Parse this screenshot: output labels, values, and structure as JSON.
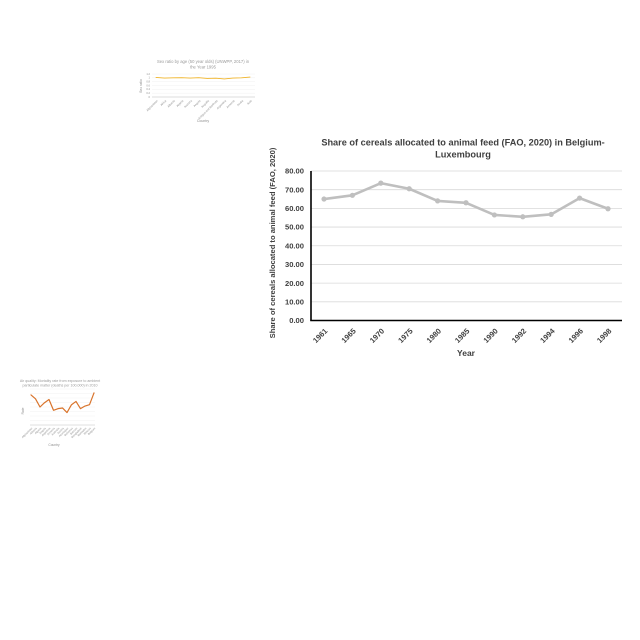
{
  "chart_data": [
    {
      "type": "line",
      "title_lines": [
        "Sex ratio by age (50 year olds) (UNWPP, 2017) in",
        "the Year 1995"
      ],
      "ylabel": "Sex ratio",
      "xlabel": "Country",
      "categories": [
        "Afghanistan",
        "Africa",
        "Albania",
        "Algeria",
        "Andorra",
        "Angola",
        "Anguilla",
        "Antigua and Barbuda",
        "Argentina",
        "Armenia",
        "Aruba",
        "Asia"
      ],
      "series": [
        {
          "values": [
            1.02,
            0.99,
            1.0,
            1.01,
            0.99,
            1.01,
            0.97,
            0.98,
            0.94,
            0.99,
            1.0,
            1.04
          ]
        }
      ],
      "ylim": [
        0,
        1.2
      ],
      "color": "#f0b429"
    },
    {
      "type": "line",
      "title_lines": [
        "Share of cereals allocated to animal feed (FAO, 2020)  in Belgium-",
        "Luxembourg"
      ],
      "xlabel": "Year",
      "ylabel": "Share of cereals allocated to animal feed (FAO, 2020)",
      "categories": [
        "1961",
        "1965",
        "1970",
        "1975",
        "1980",
        "1985",
        "1990",
        "1992",
        "1994",
        "1996",
        "1998"
      ],
      "series": [
        {
          "values": [
            65.0,
            67.0,
            73.5,
            70.5,
            64.0,
            63.0,
            56.5,
            55.5,
            56.8,
            65.5,
            59.8
          ]
        }
      ],
      "yticks": [
        "0.00",
        "10.00",
        "20.00",
        "30.00",
        "40.00",
        "50.00",
        "60.00",
        "70.00",
        "80.00"
      ],
      "ylim": [
        0,
        80
      ],
      "color": "#bfbfbf"
    },
    {
      "type": "line",
      "title_lines": [
        "Air quality: Mortality rate from exposure to ambient",
        "particulate matter (deaths per 100,000) in 2010"
      ],
      "ylabel": "Rate",
      "xlabel": "Country",
      "categories": [
        "Afghanistan",
        "Albania",
        "Algeria",
        "Angola",
        "Argentina",
        "Armenia",
        "Australia",
        "Austria",
        "Azerbaijan",
        "Bahamas",
        "Bahrain",
        "Bangladesh",
        "Barbados",
        "Belarus",
        "Belgium"
      ],
      "series": [
        {
          "values": [
            92,
            80,
            55,
            68,
            78,
            45,
            50,
            52,
            38,
            62,
            72,
            50,
            58,
            62,
            98
          ]
        }
      ],
      "ylim": [
        0,
        110
      ],
      "color": "#d9742c"
    }
  ]
}
